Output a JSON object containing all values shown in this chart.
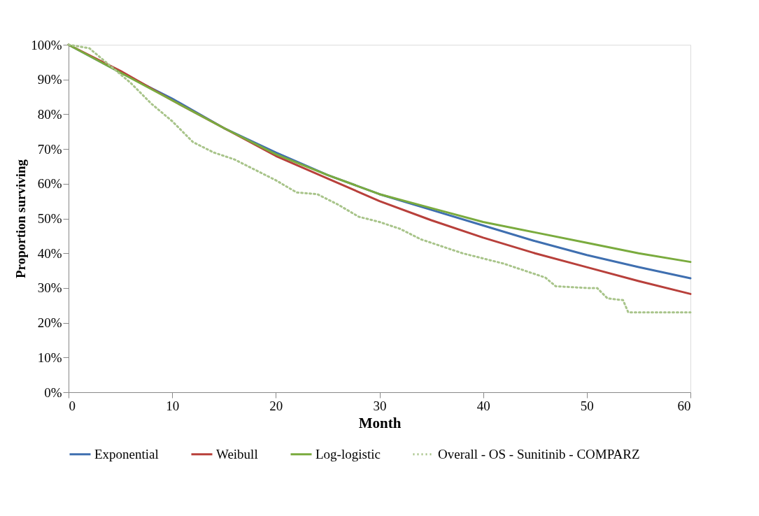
{
  "chart_data": {
    "type": "line",
    "xlabel": "Month",
    "ylabel": "Proportion surviving",
    "xlim": [
      0,
      60
    ],
    "xticks": [
      0,
      10,
      20,
      30,
      40,
      50,
      60
    ],
    "ylim": [
      0,
      100
    ],
    "yticks": [
      {
        "value": 0,
        "label": "0%"
      },
      {
        "value": 10,
        "label": "10%"
      },
      {
        "value": 20,
        "label": "20%"
      },
      {
        "value": 30,
        "label": "30%"
      },
      {
        "value": 40,
        "label": "40%"
      },
      {
        "value": 50,
        "label": "50%"
      },
      {
        "value": 60,
        "label": "60%"
      },
      {
        "value": 70,
        "label": "70%"
      },
      {
        "value": 80,
        "label": "80%"
      },
      {
        "value": 90,
        "label": "90%"
      },
      {
        "value": 100,
        "label": "100%"
      }
    ],
    "grid": false,
    "legend": "bottom",
    "marker": "none",
    "series": [
      {
        "name": "Exponential",
        "color": "#3f6fb0",
        "line_style": "solid",
        "x": [
          0,
          5,
          10,
          15,
          20,
          25,
          30,
          35,
          40,
          45,
          50,
          55,
          60
        ],
        "values": [
          100,
          92,
          84.5,
          76,
          69,
          62.5,
          57,
          52.5,
          48,
          43.5,
          39.5,
          36,
          32.8
        ]
      },
      {
        "name": "Weibull",
        "color": "#b8403b",
        "line_style": "solid",
        "x": [
          0,
          5,
          10,
          15,
          20,
          25,
          30,
          35,
          40,
          45,
          50,
          55,
          60
        ],
        "values": [
          100,
          92.5,
          84,
          76,
          68,
          61.5,
          55,
          49.5,
          44.5,
          40,
          36,
          32,
          28.3
        ]
      },
      {
        "name": "Log-logistic",
        "color": "#7aab3e",
        "line_style": "solid",
        "x": [
          0,
          5,
          10,
          15,
          20,
          25,
          30,
          35,
          40,
          45,
          50,
          55,
          60
        ],
        "values": [
          100,
          92,
          84,
          76,
          68.5,
          62.5,
          57,
          53,
          49,
          46,
          43,
          40,
          37.5
        ]
      },
      {
        "name": "Overall - OS - Sunitinib - COMPARZ",
        "color": "#a8c48a",
        "line_style": "dotted",
        "x": [
          0,
          2,
          4,
          6,
          8,
          10,
          12,
          14,
          16,
          18,
          20,
          22,
          24,
          26,
          28,
          30,
          32,
          34,
          36,
          38,
          40,
          42,
          44,
          46,
          47,
          50,
          51,
          52,
          53.5,
          54,
          60
        ],
        "values": [
          100,
          99,
          94,
          89,
          83,
          78,
          72,
          69,
          67,
          64,
          61,
          57.5,
          57,
          54,
          50.5,
          49,
          47,
          44,
          42,
          40,
          38.5,
          37,
          35,
          33,
          30.5,
          30,
          30,
          27,
          26.5,
          23,
          23
        ]
      }
    ]
  }
}
